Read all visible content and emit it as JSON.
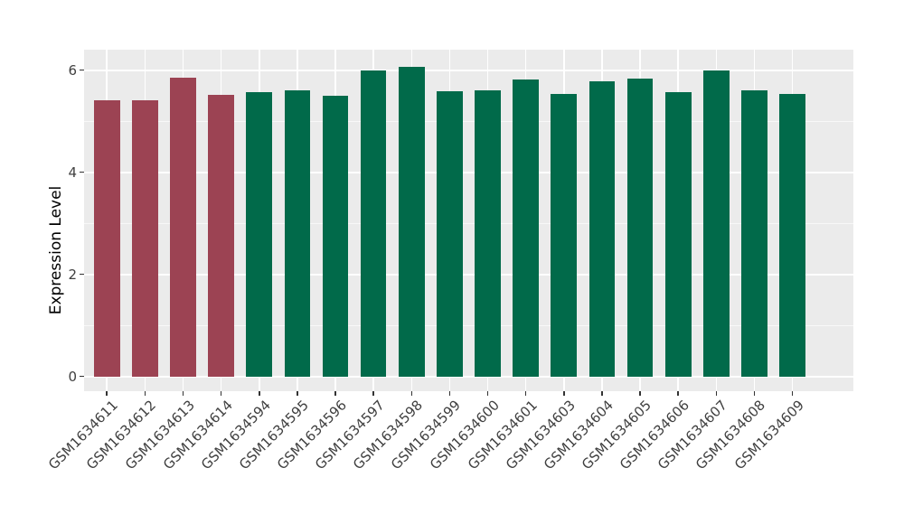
{
  "chart_data": {
    "type": "bar",
    "title": "",
    "xlabel": "",
    "ylabel": "Expression Level",
    "categories": [
      "GSM1634611",
      "GSM1634612",
      "GSM1634613",
      "GSM1634614",
      "GSM1634594",
      "GSM1634595",
      "GSM1634596",
      "GSM1634597",
      "GSM1634598",
      "GSM1634599",
      "GSM1634600",
      "GSM1634601",
      "GSM1634603",
      "GSM1634604",
      "GSM1634605",
      "GSM1634606",
      "GSM1634607",
      "GSM1634608",
      "GSM1634609"
    ],
    "values": [
      5.41,
      5.41,
      5.85,
      5.51,
      5.57,
      5.61,
      5.49,
      5.99,
      6.07,
      5.58,
      5.6,
      5.81,
      5.54,
      5.78,
      5.84,
      5.57,
      5.99,
      5.61,
      5.54
    ],
    "bar_groups": [
      "maroon",
      "maroon",
      "maroon",
      "maroon",
      "green",
      "green",
      "green",
      "green",
      "green",
      "green",
      "green",
      "green",
      "green",
      "green",
      "green",
      "green",
      "green",
      "green",
      "green"
    ],
    "palette": {
      "maroon": "#9C4353",
      "green": "#016A4A"
    },
    "yticks": [
      0,
      2,
      4,
      6
    ],
    "minor_yticks": [
      1,
      3,
      5
    ],
    "ylim": [
      0,
      6.4
    ],
    "grid": "on",
    "legend": "none",
    "colors": {
      "figure_background": "#FFFFFF",
      "panel_background": "#EBEBEB",
      "gridline": "#FFFFFF",
      "tick_text": "#404040",
      "axis_title_text": "#000000",
      "tick_mark": "#333333"
    }
  }
}
